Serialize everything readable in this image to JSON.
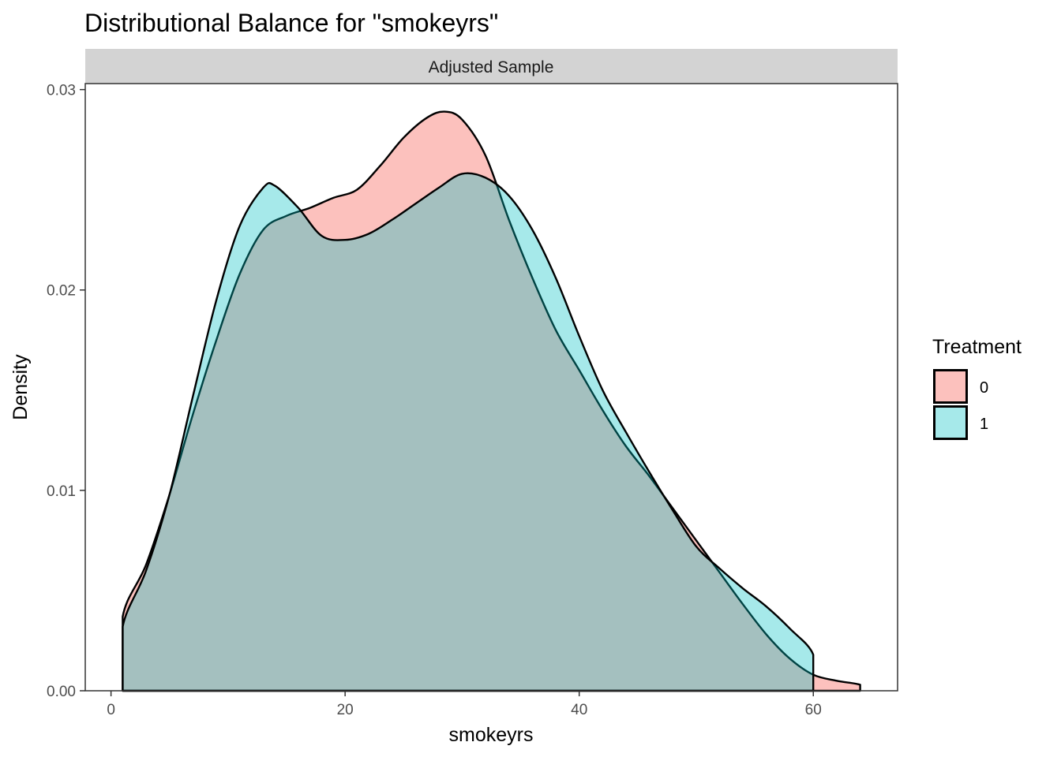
{
  "chart_data": {
    "type": "area",
    "subtype": "density",
    "title": "Distributional Balance for \"smokeyrs\"",
    "facet_label": "Adjusted Sample",
    "xlabel": "smokeyrs",
    "ylabel": "Density",
    "xlim": [
      -2.2,
      67.2
    ],
    "ylim": [
      0,
      0.0303
    ],
    "x_ticks": [
      0,
      20,
      40,
      60
    ],
    "x_tick_labels": [
      "0",
      "20",
      "40",
      "60"
    ],
    "y_ticks": [
      0,
      0.01,
      0.02,
      0.03
    ],
    "y_tick_labels": [
      "0.00",
      "0.01",
      "0.02",
      "0.03"
    ],
    "grid": false,
    "legend": {
      "title": "Treatment",
      "position": "right"
    },
    "series": [
      {
        "name": "0",
        "fill": "#F8766D",
        "fill_opacity": 0.45,
        "points": [
          [
            1,
            0
          ],
          [
            1,
            0.0037
          ],
          [
            3,
            0.0063
          ],
          [
            5,
            0.0098
          ],
          [
            7,
            0.0138
          ],
          [
            9,
            0.0175
          ],
          [
            11,
            0.0208
          ],
          [
            13,
            0.023
          ],
          [
            15,
            0.0237
          ],
          [
            17,
            0.0241
          ],
          [
            19,
            0.0246
          ],
          [
            21,
            0.025
          ],
          [
            23,
            0.0262
          ],
          [
            25,
            0.0276
          ],
          [
            27,
            0.0286
          ],
          [
            28.5,
            0.0289
          ],
          [
            30,
            0.0285
          ],
          [
            32,
            0.0267
          ],
          [
            34,
            0.0235
          ],
          [
            36,
            0.0206
          ],
          [
            38,
            0.018
          ],
          [
            40,
            0.016
          ],
          [
            42,
            0.014
          ],
          [
            44,
            0.0122
          ],
          [
            46,
            0.0107
          ],
          [
            48,
            0.0091
          ],
          [
            50,
            0.0075
          ],
          [
            52,
            0.0059
          ],
          [
            54,
            0.0043
          ],
          [
            56,
            0.0028
          ],
          [
            58,
            0.0016
          ],
          [
            60,
            0.0008
          ],
          [
            62,
            0.0005
          ],
          [
            64,
            0.0003
          ],
          [
            64,
            0
          ]
        ]
      },
      {
        "name": "1",
        "fill": "#00BFC4",
        "fill_opacity": 0.35,
        "points": [
          [
            1,
            0
          ],
          [
            1,
            0.0032
          ],
          [
            3,
            0.006
          ],
          [
            5,
            0.0098
          ],
          [
            7,
            0.0147
          ],
          [
            9,
            0.0195
          ],
          [
            11,
            0.0232
          ],
          [
            13,
            0.0251
          ],
          [
            14,
            0.0252
          ],
          [
            16,
            0.0241
          ],
          [
            18,
            0.0227
          ],
          [
            20,
            0.0225
          ],
          [
            22,
            0.0228
          ],
          [
            24,
            0.0235
          ],
          [
            26,
            0.0243
          ],
          [
            28,
            0.0251
          ],
          [
            30,
            0.0258
          ],
          [
            32,
            0.0256
          ],
          [
            34,
            0.0247
          ],
          [
            36,
            0.023
          ],
          [
            38,
            0.0206
          ],
          [
            40,
            0.0177
          ],
          [
            42,
            0.015
          ],
          [
            44,
            0.0129
          ],
          [
            46,
            0.0109
          ],
          [
            48,
            0.009
          ],
          [
            50,
            0.0072
          ],
          [
            52,
            0.0061
          ],
          [
            54,
            0.0051
          ],
          [
            56,
            0.0042
          ],
          [
            58,
            0.0031
          ],
          [
            60,
            0.0018
          ],
          [
            60,
            0
          ]
        ]
      }
    ]
  }
}
